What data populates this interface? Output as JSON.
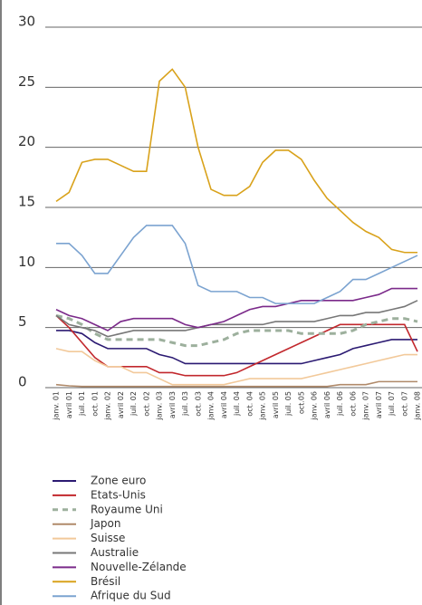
{
  "chart_data": {
    "type": "line",
    "categories": [
      "janv. 01",
      "avril 01",
      "juil. 01",
      "oct. 01",
      "janv. 02",
      "avril 02",
      "juil. 02",
      "oct. 02",
      "janv. 03",
      "avril 03",
      "juil. 03",
      "oct. 03",
      "janv. 04",
      "avril 04",
      "juil. 04",
      "oct. 04",
      "janv. 05",
      "avril 05",
      "juil. 05",
      "oct.05",
      "janv. 06",
      "avril 06",
      "juil. 06",
      "oct. 06",
      "janv. 07",
      "avril 07",
      "juil. 07",
      "oct. 07",
      "janv. 08"
    ],
    "ylim": [
      0,
      30
    ],
    "yticks": [
      0,
      5,
      10,
      15,
      20,
      25,
      30
    ],
    "grid": true,
    "series": [
      {
        "name": "Zone euro",
        "color": "#2b1a72",
        "values": [
          4.75,
          4.75,
          4.5,
          3.75,
          3.25,
          3.25,
          3.25,
          3.25,
          2.75,
          2.5,
          2,
          2,
          2,
          2,
          2,
          2,
          2,
          2,
          2,
          2,
          2.25,
          2.5,
          2.75,
          3.25,
          3.5,
          3.75,
          4,
          4,
          4
        ]
      },
      {
        "name": "Etats-Unis",
        "color": "#c2282d",
        "values": [
          6,
          5,
          3.75,
          2.5,
          1.75,
          1.75,
          1.75,
          1.75,
          1.25,
          1.25,
          1,
          1,
          1,
          1,
          1.25,
          1.75,
          2.25,
          2.75,
          3.25,
          3.75,
          4.25,
          4.75,
          5.25,
          5.25,
          5.25,
          5.25,
          5.25,
          5.25,
          3
        ]
      },
      {
        "name": "Royaume Uni",
        "color": "#9db09d",
        "line_style": "dashed",
        "values": [
          6,
          5.75,
          5.25,
          4.5,
          4,
          4,
          4,
          4,
          4,
          3.75,
          3.5,
          3.5,
          3.75,
          4,
          4.5,
          4.75,
          4.75,
          4.75,
          4.75,
          4.5,
          4.5,
          4.5,
          4.5,
          4.75,
          5.25,
          5.5,
          5.75,
          5.75,
          5.5
        ]
      },
      {
        "name": "Japon",
        "color": "#b08a6a",
        "values": [
          0.25,
          0.15,
          0.1,
          0.1,
          0.1,
          0.1,
          0.1,
          0.1,
          0.1,
          0.1,
          0.1,
          0.1,
          0.1,
          0.1,
          0.1,
          0.1,
          0.1,
          0.1,
          0.1,
          0.1,
          0.1,
          0.1,
          0.25,
          0.25,
          0.25,
          0.5,
          0.5,
          0.5,
          0.5
        ]
      },
      {
        "name": "Suisse",
        "color": "#f2c99a",
        "values": [
          3.25,
          3,
          3,
          2.25,
          1.75,
          1.75,
          1.25,
          1.25,
          0.75,
          0.25,
          0.25,
          0.25,
          0.25,
          0.25,
          0.5,
          0.75,
          0.75,
          0.75,
          0.75,
          0.75,
          1,
          1.25,
          1.5,
          1.75,
          2,
          2.25,
          2.5,
          2.75,
          2.75
        ]
      },
      {
        "name": "Australie",
        "color": "#777777",
        "values": [
          6,
          5.25,
          5,
          4.75,
          4.25,
          4.5,
          4.75,
          4.75,
          4.75,
          4.75,
          4.75,
          5,
          5.25,
          5.25,
          5.25,
          5.25,
          5.25,
          5.5,
          5.5,
          5.5,
          5.5,
          5.75,
          6,
          6,
          6.25,
          6.25,
          6.5,
          6.75,
          7.25
        ]
      },
      {
        "name": "Nouvelle-Zélande",
        "color": "#7b2a8a",
        "values": [
          6.5,
          6,
          5.75,
          5.25,
          4.75,
          5.5,
          5.75,
          5.75,
          5.75,
          5.75,
          5.25,
          5,
          5.25,
          5.5,
          6,
          6.5,
          6.75,
          6.75,
          7,
          7.25,
          7.25,
          7.25,
          7.25,
          7.25,
          7.5,
          7.75,
          8.25,
          8.25,
          8.25
        ]
      },
      {
        "name": "Brésil",
        "color": "#d9a21b",
        "values": [
          15.5,
          16.25,
          18.75,
          19,
          19,
          18.5,
          18,
          18,
          25.5,
          26.5,
          25,
          20,
          16.5,
          16,
          16,
          16.75,
          18.75,
          19.75,
          19.75,
          19,
          17.25,
          15.75,
          14.75,
          13.75,
          13,
          12.5,
          11.5,
          11.25,
          11.25
        ]
      },
      {
        "name": "Afrique du Sud",
        "color": "#7ba3d0",
        "values": [
          12,
          12,
          11,
          9.5,
          9.5,
          11,
          12.5,
          13.5,
          13.5,
          13.5,
          12,
          8.5,
          8,
          8,
          8,
          7.5,
          7.5,
          7,
          7,
          7,
          7,
          7.5,
          8,
          9,
          9,
          9.5,
          10,
          10.5,
          11
        ]
      }
    ]
  }
}
